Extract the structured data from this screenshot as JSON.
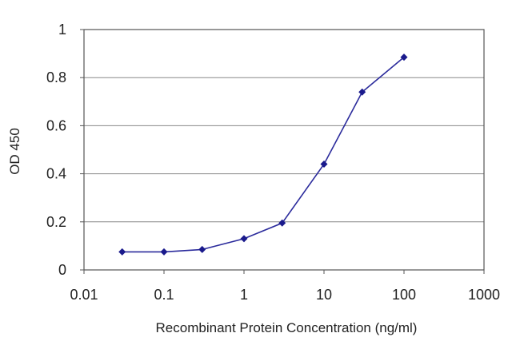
{
  "chart_data": {
    "type": "line",
    "title": "",
    "xlabel": "Recombinant Protein Concentration (ng/ml)",
    "ylabel": "OD 450",
    "x_scale": "log",
    "xlim": [
      0.01,
      1000
    ],
    "ylim": [
      0,
      1
    ],
    "x_ticks": [
      "0.01",
      "0.1",
      "1",
      "10",
      "100",
      "1000"
    ],
    "y_ticks": [
      "0",
      "0.2",
      "0.4",
      "0.6",
      "0.8",
      "1"
    ],
    "grid": "horizontal",
    "legend": "none",
    "series": [
      {
        "x": [
          0.03,
          0.1,
          0.3,
          1,
          3,
          10,
          30,
          100
        ],
        "y": [
          0.075,
          0.075,
          0.085,
          0.13,
          0.195,
          0.44,
          0.74,
          0.885
        ]
      }
    ],
    "colors": {
      "line": "#2b2b9c",
      "marker": "#1a1a8c",
      "grid": "#888888",
      "plot_border": "#555555"
    }
  }
}
